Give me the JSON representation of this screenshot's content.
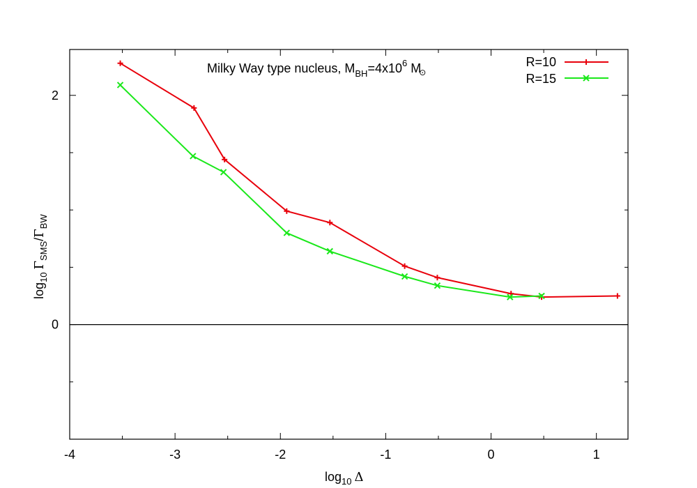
{
  "chart_data": {
    "type": "line",
    "title": {
      "prefix": "Milky Way type nucleus, M",
      "sub1": "BH",
      "mid": "=4x10",
      "sup": "6",
      "tail": " M",
      "sun": "⊙"
    },
    "xlabel": {
      "pre": "log",
      "sub": "10",
      "sym": "Δ"
    },
    "ylabel": {
      "pre": "log",
      "sub1": "10",
      "g1": "Γ",
      "sub2": "SMS",
      "slash": "/",
      "g2": "Γ",
      "sub3": "BW"
    },
    "xlim": [
      -4,
      1.3
    ],
    "ylim": [
      -1,
      2.4
    ],
    "x_ticks": [
      -4,
      -3,
      -2,
      -1,
      0,
      1
    ],
    "x_tick_labels": [
      "-4",
      "-3",
      "-2",
      "-1",
      "0",
      "1"
    ],
    "y_ticks": [
      0,
      2
    ],
    "y_tick_labels": [
      "0",
      "2"
    ],
    "zero_line": 0,
    "legend_position": "top-right",
    "series": [
      {
        "name": "R=10",
        "color": "#e8000b",
        "marker": "plus",
        "x": [
          -3.52,
          -2.82,
          -2.53,
          -1.94,
          -1.53,
          -0.82,
          -0.51,
          0.19,
          0.48,
          1.2
        ],
        "y": [
          2.28,
          1.89,
          1.44,
          0.99,
          0.89,
          0.51,
          0.41,
          0.27,
          0.24,
          0.25
        ]
      },
      {
        "name": "R=15",
        "color": "#1ae81a",
        "marker": "cross",
        "x": [
          -3.52,
          -2.83,
          -2.54,
          -1.94,
          -1.53,
          -0.82,
          -0.51,
          0.18,
          0.48
        ],
        "y": [
          2.09,
          1.47,
          1.33,
          0.8,
          0.64,
          0.42,
          0.34,
          0.24,
          0.25
        ]
      }
    ]
  }
}
